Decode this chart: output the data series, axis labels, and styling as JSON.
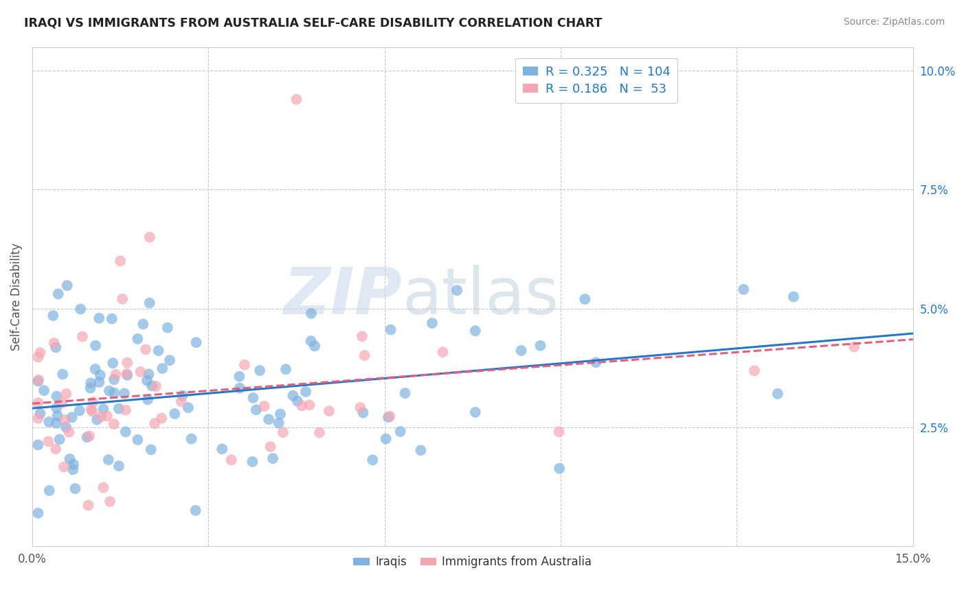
{
  "title": "IRAQI VS IMMIGRANTS FROM AUSTRALIA SELF-CARE DISABILITY CORRELATION CHART",
  "source": "Source: ZipAtlas.com",
  "ylabel": "Self-Care Disability",
  "xlim": [
    0.0,
    0.15
  ],
  "ylim": [
    0.0,
    0.105
  ],
  "iraqis_R": 0.325,
  "iraqis_N": 104,
  "australia_R": 0.186,
  "australia_N": 53,
  "iraqis_color": "#7eb3e0",
  "australia_color": "#f4a7b3",
  "iraqis_line_color": "#2777c8",
  "australia_line_color": "#e06080",
  "legend_label_iraqis": "Iraqis",
  "legend_label_australia": "Immigrants from Australia",
  "watermark_zip": "ZIP",
  "watermark_atlas": "atlas",
  "label_color": "#2777c8",
  "seed_iraqis": 12,
  "seed_australia": 7
}
